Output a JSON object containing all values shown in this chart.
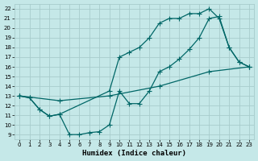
{
  "xlabel": "Humidex (Indice chaleur)",
  "xlim": [
    -0.5,
    23.5
  ],
  "ylim": [
    8.5,
    22.5
  ],
  "xticks": [
    0,
    1,
    2,
    3,
    4,
    5,
    6,
    7,
    8,
    9,
    10,
    11,
    12,
    13,
    14,
    15,
    16,
    17,
    18,
    19,
    20,
    21,
    22,
    23
  ],
  "yticks": [
    9,
    10,
    11,
    12,
    13,
    14,
    15,
    16,
    17,
    18,
    19,
    20,
    21,
    22
  ],
  "bg_color": "#c5e8e8",
  "grid_color": "#a8cccc",
  "line_color": "#006666",
  "line1_x": [
    0,
    1,
    2,
    3,
    4,
    5,
    6,
    7,
    8,
    9,
    10,
    11,
    12,
    13,
    14,
    15,
    16,
    17,
    18,
    19,
    20,
    21,
    22,
    23
  ],
  "line1_y": [
    13.0,
    12.8,
    11.6,
    10.9,
    11.1,
    9.0,
    9.0,
    9.2,
    9.3,
    10.0,
    13.5,
    12.2,
    12.2,
    13.5,
    15.5,
    16.0,
    16.8,
    17.8,
    19.0,
    21.0,
    21.2,
    18.0,
    16.5,
    16.0
  ],
  "line2_x": [
    0,
    1,
    2,
    3,
    4,
    9,
    10,
    11,
    12,
    13,
    14,
    15,
    16,
    17,
    18,
    19,
    20,
    21,
    22,
    23
  ],
  "line2_y": [
    13.0,
    12.8,
    11.6,
    10.9,
    11.1,
    13.5,
    17.0,
    17.5,
    18.0,
    19.0,
    20.5,
    21.0,
    21.0,
    21.5,
    21.5,
    22.0,
    21.0,
    18.0,
    16.5,
    16.0
  ],
  "line3_x": [
    0,
    4,
    9,
    14,
    19,
    23
  ],
  "line3_y": [
    13.0,
    12.5,
    13.0,
    14.0,
    15.5,
    16.0
  ]
}
